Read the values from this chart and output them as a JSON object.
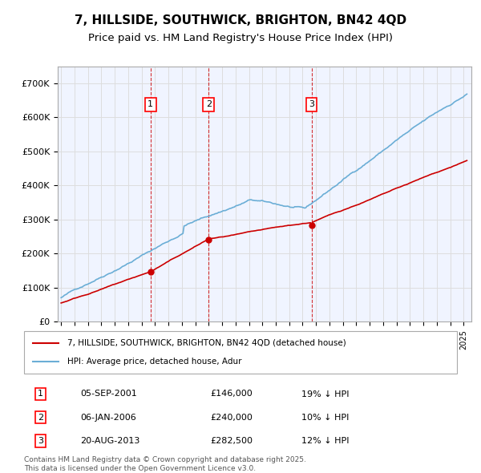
{
  "title": "7, HILLSIDE, SOUTHWICK, BRIGHTON, BN42 4QD",
  "subtitle": "Price paid vs. HM Land Registry's House Price Index (HPI)",
  "xlabel": "",
  "ylabel": "",
  "ylim": [
    0,
    750000
  ],
  "yticks": [
    0,
    100000,
    200000,
    300000,
    400000,
    500000,
    600000,
    700000
  ],
  "ytick_labels": [
    "£0",
    "£100K",
    "£200K",
    "£300K",
    "£400K",
    "£500K",
    "£600K",
    "£700K"
  ],
  "hpi_color": "#6baed6",
  "property_color": "#cc0000",
  "sale_color": "#cc0000",
  "vline_color": "#cc0000",
  "grid_color": "#dddddd",
  "background_color": "#f0f4ff",
  "sale_dates": [
    "2001-09-05",
    "2006-01-06",
    "2013-08-20"
  ],
  "sale_prices": [
    146000,
    240000,
    282500
  ],
  "sale_labels": [
    "1",
    "2",
    "3"
  ],
  "legend_property": "7, HILLSIDE, SOUTHWICK, BRIGHTON, BN42 4QD (detached house)",
  "legend_hpi": "HPI: Average price, detached house, Adur",
  "table_entries": [
    {
      "num": "1",
      "date": "05-SEP-2001",
      "price": "£146,000",
      "hpi": "19% ↓ HPI"
    },
    {
      "num": "2",
      "date": "06-JAN-2006",
      "price": "£240,000",
      "hpi": "10% ↓ HPI"
    },
    {
      "num": "3",
      "date": "20-AUG-2013",
      "price": "£282,500",
      "hpi": "12% ↓ HPI"
    }
  ],
  "footnote": "Contains HM Land Registry data © Crown copyright and database right 2025.\nThis data is licensed under the Open Government Licence v3.0.",
  "title_fontsize": 11,
  "subtitle_fontsize": 9.5
}
